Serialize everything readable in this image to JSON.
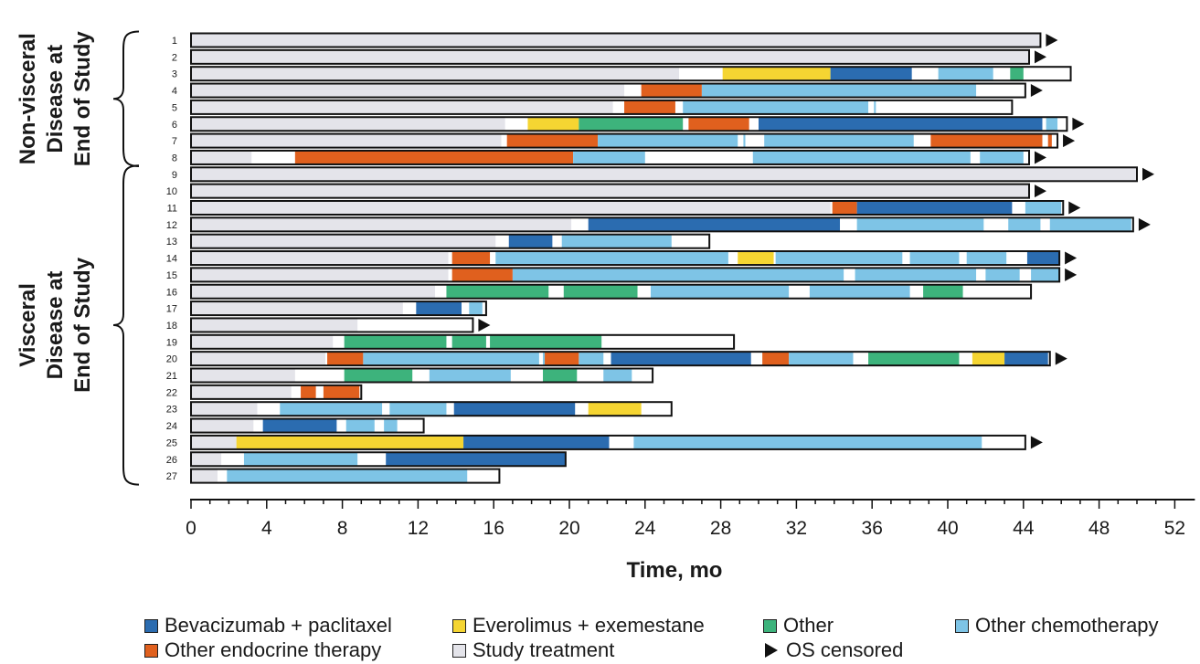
{
  "chart_data": {
    "type": "swimmer",
    "xlabel": "Time, mo",
    "xlim": [
      0,
      52
    ],
    "xticks": [
      0,
      4,
      8,
      12,
      16,
      20,
      24,
      28,
      32,
      36,
      40,
      44,
      48,
      52
    ],
    "groups": [
      {
        "label": [
          "Non-visceral",
          "Disease at",
          "End of Study"
        ],
        "patients": [
          1,
          2,
          3,
          4,
          5,
          6,
          7,
          8
        ]
      },
      {
        "label": [
          "Visceral",
          "Disease at",
          "End of Study"
        ],
        "patients": [
          9,
          10,
          11,
          12,
          13,
          14,
          15,
          16,
          17,
          18,
          19,
          20,
          21,
          22,
          23,
          24,
          25,
          26,
          27
        ]
      }
    ],
    "categories": {
      "bev": {
        "name": "Bevacizumab + paclitaxel",
        "color": "#2b6cb0"
      },
      "eve": {
        "name": "Everolimus + exemestane",
        "color": "#f5d532"
      },
      "oth": {
        "name": "Other",
        "color": "#3db37c"
      },
      "chemo": {
        "name": "Other chemotherapy",
        "color": "#7ec4e6"
      },
      "endo": {
        "name": "Other endocrine therapy",
        "color": "#e0601e"
      },
      "study": {
        "name": "Study treatment",
        "color": "#e4e4ea"
      }
    },
    "censor_label": "OS censored",
    "legend_order": [
      "bev",
      "eve",
      "oth",
      "chemo",
      "endo",
      "study"
    ],
    "patients": [
      {
        "id": "1",
        "end": 44.9,
        "censored": true,
        "segments": [
          [
            "study",
            0,
            44.9
          ]
        ]
      },
      {
        "id": "2",
        "end": 44.3,
        "censored": true,
        "segments": [
          [
            "study",
            0,
            44.3
          ]
        ]
      },
      {
        "id": "3",
        "end": 46.5,
        "censored": false,
        "segments": [
          [
            "study",
            0,
            25.8
          ],
          [
            "eve",
            28.1,
            33.8
          ],
          [
            "bev",
            33.8,
            38.1
          ],
          [
            "chemo",
            39.5,
            42.4
          ],
          [
            "oth",
            43.3,
            44.0
          ]
        ]
      },
      {
        "id": "4",
        "end": 44.1,
        "censored": true,
        "segments": [
          [
            "study",
            0,
            22.9
          ],
          [
            "endo",
            23.8,
            27.0
          ],
          [
            "chemo",
            27.0,
            41.5
          ]
        ]
      },
      {
        "id": "5",
        "end": 43.4,
        "censored": false,
        "segments": [
          [
            "study",
            0,
            22.3
          ],
          [
            "endo",
            22.9,
            25.6
          ],
          [
            "chemo",
            26.0,
            35.8
          ],
          [
            "chemo",
            36.1,
            36.2
          ]
        ]
      },
      {
        "id": "6",
        "end": 46.3,
        "censored": true,
        "segments": [
          [
            "study",
            0,
            16.6
          ],
          [
            "eve",
            17.8,
            20.5
          ],
          [
            "oth",
            20.5,
            26.0
          ],
          [
            "endo",
            26.3,
            29.5
          ],
          [
            "bev",
            30.0,
            45.0
          ],
          [
            "chemo",
            45.2,
            45.8
          ]
        ]
      },
      {
        "id": "7",
        "end": 45.8,
        "censored": true,
        "segments": [
          [
            "study",
            0,
            16.4
          ],
          [
            "endo",
            16.7,
            21.5
          ],
          [
            "chemo",
            21.5,
            28.9
          ],
          [
            "chemo",
            29.2,
            29.3
          ],
          [
            "chemo",
            30.3,
            38.2
          ],
          [
            "endo",
            39.1,
            45.0
          ],
          [
            "endo",
            45.3,
            45.5
          ]
        ]
      },
      {
        "id": "8",
        "end": 44.3,
        "censored": true,
        "segments": [
          [
            "study",
            0,
            3.2
          ],
          [
            "endo",
            5.5,
            20.2
          ],
          [
            "chemo",
            20.2,
            24.0
          ],
          [
            "chemo",
            29.7,
            41.2
          ],
          [
            "chemo",
            41.7,
            44.0
          ]
        ]
      },
      {
        "id": "9",
        "end": 50.0,
        "censored": true,
        "segments": [
          [
            "study",
            0,
            50.0
          ]
        ]
      },
      {
        "id": "10",
        "end": 44.3,
        "censored": true,
        "segments": [
          [
            "study",
            0,
            44.3
          ]
        ]
      },
      {
        "id": "11",
        "end": 46.1,
        "censored": true,
        "segments": [
          [
            "study",
            0,
            33.8
          ],
          [
            "endo",
            33.9,
            35.2
          ],
          [
            "bev",
            35.2,
            43.4
          ],
          [
            "chemo",
            44.1,
            46.0
          ]
        ]
      },
      {
        "id": "12",
        "end": 49.8,
        "censored": true,
        "segments": [
          [
            "study",
            0,
            20.1
          ],
          [
            "bev",
            21.0,
            34.3
          ],
          [
            "chemo",
            35.2,
            41.9
          ],
          [
            "chemo",
            43.2,
            44.9
          ],
          [
            "chemo",
            45.4,
            49.7
          ]
        ]
      },
      {
        "id": "13",
        "end": 27.4,
        "censored": false,
        "segments": [
          [
            "study",
            0,
            16.1
          ],
          [
            "bev",
            16.8,
            19.1
          ],
          [
            "chemo",
            19.6,
            25.4
          ]
        ]
      },
      {
        "id": "14",
        "end": 45.9,
        "censored": true,
        "segments": [
          [
            "study",
            0,
            13.6
          ],
          [
            "endo",
            13.8,
            15.8
          ],
          [
            "chemo",
            16.1,
            28.4
          ],
          [
            "eve",
            28.9,
            30.8
          ],
          [
            "chemo",
            30.9,
            37.6
          ],
          [
            "chemo",
            38.0,
            40.6
          ],
          [
            "chemo",
            41.0,
            43.1
          ],
          [
            "bev",
            44.2,
            45.9
          ]
        ]
      },
      {
        "id": "15",
        "end": 45.9,
        "censored": true,
        "segments": [
          [
            "study",
            0,
            13.6
          ],
          [
            "endo",
            13.8,
            17.0
          ],
          [
            "chemo",
            17.0,
            34.5
          ],
          [
            "chemo",
            35.1,
            41.5
          ],
          [
            "chemo",
            42.0,
            43.8
          ],
          [
            "chemo",
            44.4,
            45.9
          ]
        ]
      },
      {
        "id": "16",
        "end": 44.4,
        "censored": false,
        "segments": [
          [
            "study",
            0,
            12.9
          ],
          [
            "oth",
            13.5,
            18.9
          ],
          [
            "oth",
            19.7,
            23.6
          ],
          [
            "chemo",
            24.3,
            31.6
          ],
          [
            "chemo",
            32.7,
            38.0
          ],
          [
            "oth",
            38.7,
            40.8
          ]
        ]
      },
      {
        "id": "17",
        "end": 15.6,
        "censored": false,
        "segments": [
          [
            "study",
            0,
            11.2
          ],
          [
            "bev",
            11.9,
            14.3
          ],
          [
            "chemo",
            14.7,
            15.4
          ]
        ]
      },
      {
        "id": "18",
        "end": 14.9,
        "censored": true,
        "segments": [
          [
            "study",
            0,
            8.8
          ]
        ]
      },
      {
        "id": "19",
        "end": 28.7,
        "censored": false,
        "segments": [
          [
            "study",
            0,
            7.5
          ],
          [
            "oth",
            8.1,
            13.5
          ],
          [
            "oth",
            13.8,
            15.6
          ],
          [
            "oth",
            15.8,
            21.7
          ]
        ]
      },
      {
        "id": "20",
        "end": 45.4,
        "censored": true,
        "segments": [
          [
            "study",
            0,
            7.1
          ],
          [
            "endo",
            7.2,
            9.1
          ],
          [
            "chemo",
            9.1,
            18.4
          ],
          [
            "chemo",
            18.6,
            20.3
          ],
          [
            "endo",
            18.7,
            20.5
          ],
          [
            "chemo",
            20.5,
            21.8
          ],
          [
            "bev",
            22.2,
            29.6
          ],
          [
            "endo",
            30.2,
            31.6
          ],
          [
            "chemo",
            31.6,
            35.0
          ],
          [
            "oth",
            35.8,
            40.6
          ],
          [
            "eve",
            41.3,
            43.0
          ],
          [
            "bev",
            43.0,
            45.3
          ]
        ]
      },
      {
        "id": "21",
        "end": 24.4,
        "censored": false,
        "segments": [
          [
            "study",
            0,
            5.5
          ],
          [
            "oth",
            8.1,
            11.7
          ],
          [
            "chemo",
            12.6,
            16.9
          ],
          [
            "oth",
            18.6,
            20.4
          ],
          [
            "chemo",
            21.8,
            23.3
          ]
        ]
      },
      {
        "id": "22",
        "end": 9.0,
        "censored": false,
        "segments": [
          [
            "study",
            0,
            5.3
          ],
          [
            "endo",
            5.8,
            6.6
          ],
          [
            "endo",
            7.0,
            8.9
          ]
        ]
      },
      {
        "id": "23",
        "end": 25.4,
        "censored": false,
        "segments": [
          [
            "study",
            0,
            3.5
          ],
          [
            "chemo",
            4.7,
            10.1
          ],
          [
            "chemo",
            10.5,
            13.5
          ],
          [
            "bev",
            13.9,
            20.3
          ],
          [
            "eve",
            21.0,
            23.8
          ]
        ]
      },
      {
        "id": "24",
        "end": 12.3,
        "censored": false,
        "segments": [
          [
            "study",
            0,
            3.3
          ],
          [
            "bev",
            3.8,
            7.7
          ],
          [
            "chemo",
            8.2,
            9.7
          ],
          [
            "chemo",
            10.2,
            10.9
          ]
        ]
      },
      {
        "id": "25",
        "end": 44.1,
        "censored": true,
        "segments": [
          [
            "study",
            0,
            2.4
          ],
          [
            "eve",
            2.4,
            14.4
          ],
          [
            "bev",
            14.4,
            22.1
          ],
          [
            "chemo",
            23.4,
            41.8
          ]
        ]
      },
      {
        "id": "26",
        "end": 19.8,
        "censored": false,
        "segments": [
          [
            "study",
            0,
            1.6
          ],
          [
            "chemo",
            2.8,
            8.8
          ],
          [
            "bev",
            10.3,
            19.8
          ]
        ]
      },
      {
        "id": "27",
        "end": 16.3,
        "censored": false,
        "segments": [
          [
            "study",
            0,
            1.4
          ],
          [
            "chemo",
            1.9,
            14.6
          ]
        ]
      }
    ]
  }
}
